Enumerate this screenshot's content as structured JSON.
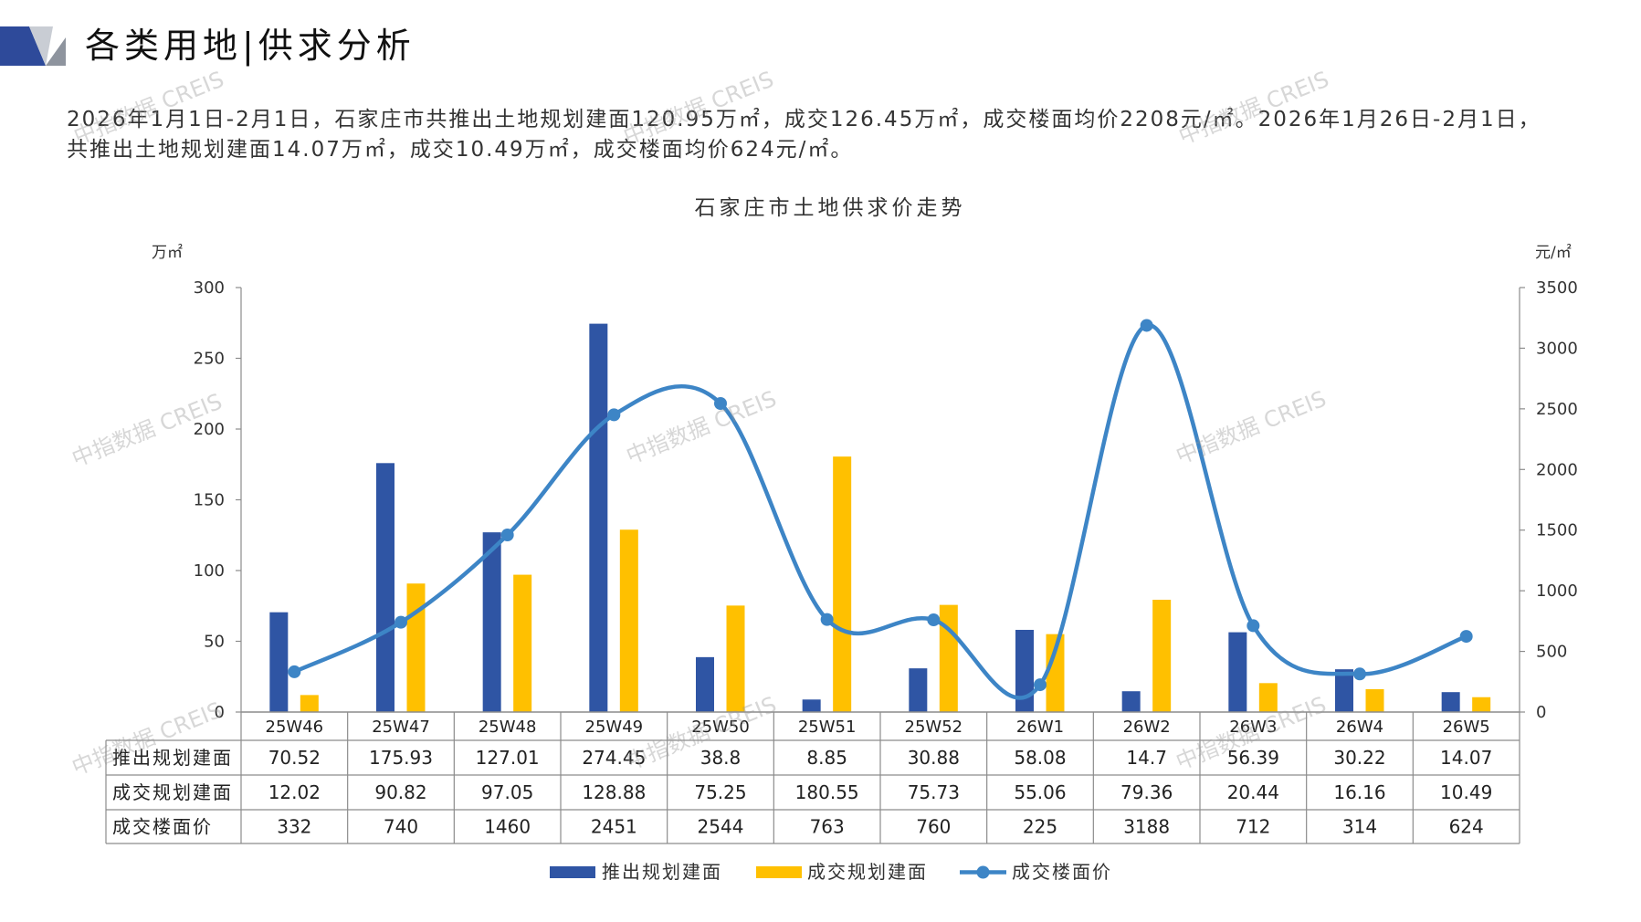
{
  "header": {
    "title": "各类用地|供求分析"
  },
  "summary": {
    "line1": "2026年1月1日-2月1日，石家庄市共推出土地规划建面120.95万㎡，成交126.45万㎡，成交楼面均价2208元/㎡。2026年1月26日-2月1日，",
    "line2": "共推出土地规划建面14.07万㎡，成交10.49万㎡，成交楼面均价624元/㎡。"
  },
  "watermark": "中指数据 CREIS",
  "colors": {
    "supply_bar": "#2F55A4",
    "deal_bar": "#FFC000",
    "price_line": "#3D85C6",
    "grid": "#8C8C8C",
    "logo_blue": "#2E4A9A",
    "logo_light_gray": "#C9CDD4",
    "logo_dark_gray": "#8E949E"
  },
  "chart_data": {
    "type": "bar",
    "title": "石家庄市土地供求价走势",
    "categories": [
      "25W46",
      "25W47",
      "25W48",
      "25W49",
      "25W50",
      "25W51",
      "25W52",
      "26W1",
      "26W2",
      "26W3",
      "26W4",
      "26W5"
    ],
    "series": [
      {
        "name": "推出规划建面",
        "type": "bar",
        "axis": "left",
        "values": [
          70.52,
          175.93,
          127.01,
          274.45,
          38.8,
          8.85,
          30.88,
          58.08,
          14.7,
          56.39,
          30.22,
          14.07
        ]
      },
      {
        "name": "成交规划建面",
        "type": "bar",
        "axis": "left",
        "values": [
          12.02,
          90.82,
          97.05,
          128.88,
          75.25,
          180.55,
          75.73,
          55.06,
          79.36,
          20.44,
          16.16,
          10.49
        ]
      },
      {
        "name": "成交楼面价",
        "type": "line",
        "axis": "right",
        "smooth": true,
        "values": [
          332,
          740,
          1460,
          2451,
          2544,
          763,
          760,
          225,
          3188,
          712,
          314,
          624
        ]
      }
    ],
    "ylabel_left": "万㎡",
    "ylabel_right": "元/㎡",
    "ylim_left": [
      0,
      300
    ],
    "ylim_right": [
      0,
      3500
    ],
    "yticks_left": [
      0,
      50,
      100,
      150,
      200,
      250,
      300
    ],
    "yticks_right": [
      0,
      500,
      1000,
      1500,
      2000,
      2500,
      3000,
      3500
    ],
    "data_table": true,
    "legend": "bottom",
    "grid": false
  }
}
